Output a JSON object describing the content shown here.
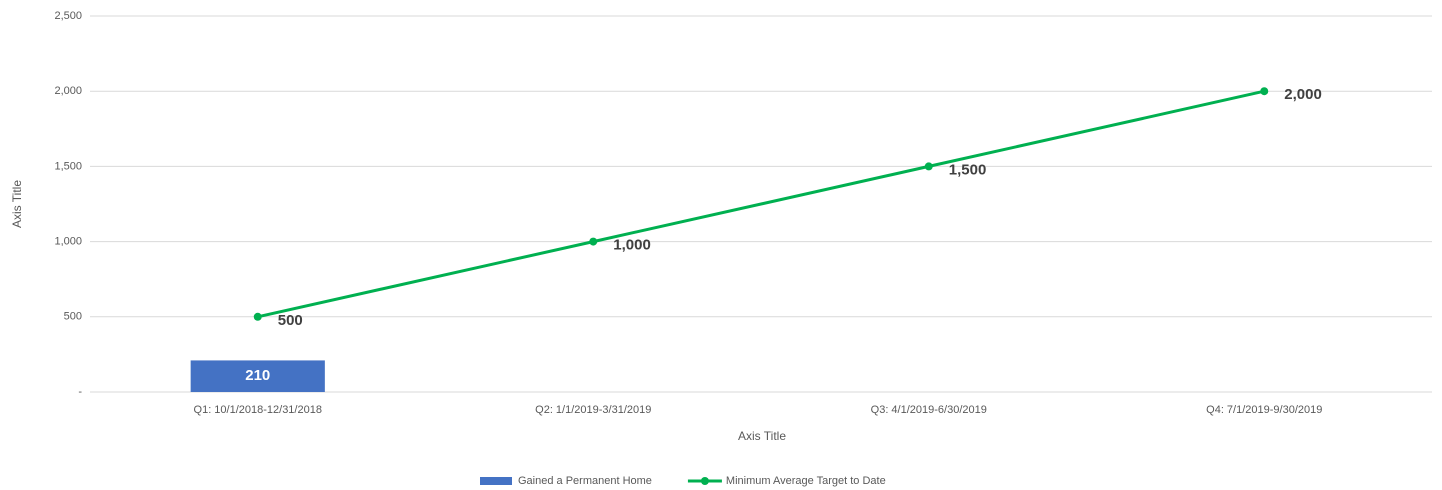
{
  "chart_data": {
    "type": "bar-line",
    "categories": [
      "Q1: 10/1/2018-12/31/2018",
      "Q2: 1/1/2019-3/31/2019",
      "Q3: 4/1/2019-6/30/2019",
      "Q4: 7/1/2019-9/30/2019"
    ],
    "series": [
      {
        "name": "Gained a Permanent Home",
        "type": "bar",
        "color": "#4472c4",
        "values": [
          210,
          null,
          null,
          null
        ]
      },
      {
        "name": "Minimum Average Target to Date",
        "type": "line",
        "color": "#00b050",
        "values": [
          500,
          1000,
          1500,
          2000
        ],
        "value_labels": [
          "500",
          "1,000",
          "1,500",
          "2,000"
        ]
      }
    ],
    "xlabel": "Axis Title",
    "ylabel": "Axis Title",
    "ylim": [
      0,
      2500
    ],
    "yticks": [
      {
        "value": 0,
        "label": "-"
      },
      500,
      {
        "value": 1000,
        "label": "1,000"
      },
      {
        "value": 1500,
        "label": "1,500"
      },
      {
        "value": 2000,
        "label": "2,000"
      },
      {
        "value": 2500,
        "label": "2,500"
      }
    ],
    "grid": true,
    "legend": "bottom"
  }
}
